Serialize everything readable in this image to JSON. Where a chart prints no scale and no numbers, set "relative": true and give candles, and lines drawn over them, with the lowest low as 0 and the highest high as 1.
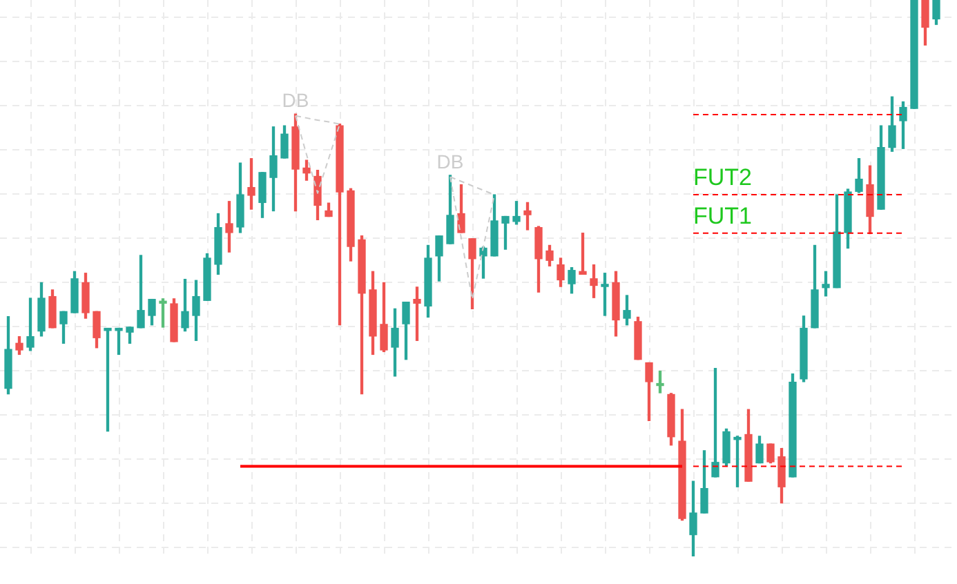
{
  "chart_data": {
    "type": "candlestick",
    "relative": true,
    "grid": true,
    "categories": [
      null,
      null,
      null,
      null,
      null,
      null,
      null,
      null,
      null,
      null,
      null,
      null,
      null,
      null,
      null,
      null,
      null,
      null,
      null,
      null,
      null,
      null,
      null,
      null,
      null,
      null,
      null,
      null,
      null,
      null,
      null,
      null,
      null,
      null,
      null,
      null,
      null,
      null,
      null,
      null,
      null,
      null,
      null,
      null,
      null,
      null,
      null,
      null,
      null,
      null,
      null,
      null,
      null,
      null,
      null,
      null,
      null,
      null,
      null,
      null,
      null,
      null,
      null,
      null,
      null,
      null,
      null,
      null,
      null,
      null,
      null,
      null,
      null,
      null,
      null,
      null,
      null,
      null,
      null,
      null,
      null,
      null,
      null,
      null,
      null
    ],
    "ohlc": [
      [
        0.302,
        0.431,
        0.292,
        0.372
      ],
      [
        0.383,
        0.395,
        0.363,
        0.371
      ],
      [
        0.376,
        0.464,
        0.37,
        0.395
      ],
      [
        0.405,
        0.492,
        0.396,
        0.464
      ],
      [
        0.467,
        0.479,
        0.411,
        0.411
      ],
      [
        0.418,
        0.44,
        0.383,
        0.44
      ],
      [
        0.438,
        0.512,
        0.438,
        0.499
      ],
      [
        0.492,
        0.509,
        0.428,
        0.438
      ],
      [
        0.44,
        0.44,
        0.375,
        0.393
      ],
      [
        0.406,
        0.41,
        0.225,
        0.41
      ],
      [
        0.406,
        0.41,
        0.363,
        0.41
      ],
      [
        0.403,
        0.412,
        0.383,
        0.412
      ],
      [
        0.411,
        0.541,
        0.411,
        0.442
      ],
      [
        0.433,
        0.462,
        0.416,
        0.462
      ],
      [
        0.455,
        0.463,
        0.412,
        0.457
      ],
      [
        0.454,
        0.463,
        0.386,
        0.386
      ],
      [
        0.411,
        0.498,
        0.405,
        0.44
      ],
      [
        0.433,
        0.496,
        0.388,
        0.467
      ],
      [
        0.46,
        0.544,
        0.46,
        0.536
      ],
      [
        0.525,
        0.616,
        0.507,
        0.591
      ],
      [
        0.598,
        0.638,
        0.547,
        0.582
      ],
      [
        0.592,
        0.707,
        0.582,
        0.65
      ],
      [
        0.663,
        0.715,
        0.624,
        0.649
      ],
      [
        0.636,
        0.69,
        0.609,
        0.69
      ],
      [
        0.681,
        0.772,
        0.621,
        0.72
      ],
      [
        0.716,
        0.774,
        0.716,
        0.759
      ],
      [
        0.772,
        0.795,
        0.621,
        0.696
      ],
      [
        0.698,
        0.712,
        0.676,
        0.689
      ],
      [
        0.683,
        0.694,
        0.605,
        0.631
      ],
      [
        0.621,
        0.635,
        0.611,
        0.611
      ],
      [
        0.774,
        0.777,
        0.416,
        0.655
      ],
      [
        0.657,
        0.661,
        0.531,
        0.557
      ],
      [
        0.569,
        0.576,
        0.292,
        0.473
      ],
      [
        0.479,
        0.512,
        0.363,
        0.396
      ],
      [
        0.417,
        0.492,
        0.368,
        0.371
      ],
      [
        0.376,
        0.445,
        0.324,
        0.41
      ],
      [
        0.418,
        0.457,
        0.354,
        0.457
      ],
      [
        0.462,
        0.484,
        0.388,
        0.455
      ],
      [
        0.45,
        0.559,
        0.43,
        0.536
      ],
      [
        0.54,
        0.576,
        0.495,
        0.576
      ],
      [
        0.562,
        0.685,
        0.562,
        0.613
      ],
      [
        0.616,
        0.668,
        0.582,
        0.582
      ],
      [
        0.571,
        0.571,
        0.445,
        0.535
      ],
      [
        0.54,
        0.556,
        0.5,
        0.554
      ],
      [
        0.54,
        0.65,
        0.54,
        0.603
      ],
      [
        0.599,
        0.611,
        0.552,
        0.611
      ],
      [
        0.602,
        0.638,
        0.597,
        0.611
      ],
      [
        0.621,
        0.636,
        0.587,
        0.614
      ],
      [
        0.591,
        0.593,
        0.475,
        0.535
      ],
      [
        0.549,
        0.559,
        0.522,
        0.532
      ],
      [
        0.524,
        0.536,
        0.485,
        0.497
      ],
      [
        0.49,
        0.519,
        0.473,
        0.514
      ],
      [
        0.512,
        0.581,
        0.507,
        0.507
      ],
      [
        0.499,
        0.524,
        0.465,
        0.487
      ],
      [
        0.485,
        0.509,
        0.433,
        0.489
      ],
      [
        0.492,
        0.512,
        0.396,
        0.425
      ],
      [
        0.428,
        0.469,
        0.416,
        0.442
      ],
      [
        0.422,
        0.43,
        0.354,
        0.354
      ],
      [
        0.348,
        0.348,
        0.244,
        0.314
      ],
      [
        0.307,
        0.333,
        0.294,
        0.308
      ],
      [
        0.291,
        0.293,
        0.2,
        0.215
      ],
      [
        0.207,
        0.264,
        0.065,
        0.068
      ],
      [
        0.039,
        0.135,
        0,
        0.078
      ],
      [
        0.078,
        0.19,
        0.078,
        0.122
      ],
      [
        0.143,
        0.338,
        0.143,
        0.169
      ],
      [
        0.168,
        0.229,
        0.163,
        0.224
      ],
      [
        0.21,
        0.216,
        0.125,
        0.214
      ],
      [
        0.219,
        0.264,
        0.135,
        0.135
      ],
      [
        0.168,
        0.216,
        0.168,
        0.202
      ],
      [
        0.202,
        0.202,
        0.168,
        0.17
      ],
      [
        0.179,
        0.194,
        0.096,
        0.125
      ],
      [
        0.143,
        0.328,
        0.143,
        0.313
      ],
      [
        0.319,
        0.432,
        0.314,
        0.41
      ],
      [
        0.411,
        0.559,
        0.411,
        0.479
      ],
      [
        0.483,
        0.512,
        0.468,
        0.489
      ],
      [
        0.483,
        0.65,
        0.483,
        0.583
      ],
      [
        0.582,
        0.66,
        0.554,
        0.655
      ],
      [
        0.656,
        0.715,
        0.654,
        0.678
      ],
      [
        0.668,
        0.702,
        0.58,
        0.611
      ],
      [
        0.624,
        0.774,
        0.624,
        0.735
      ],
      [
        0.735,
        0.826,
        0.728,
        0.774
      ],
      [
        0.783,
        0.817,
        0.733,
        0.807
      ],
      [
        0.805,
        1,
        0.805,
        1
      ],
      [
        1,
        1,
        0.919,
        0.951
      ],
      [
        0.966,
        1,
        0.956,
        1
      ]
    ],
    "colors": [
      "#26a69a",
      "#ef5350",
      "#26a69a",
      "#26a69a",
      "#ef5350",
      "#26a69a",
      "#26a69a",
      "#ef5350",
      "#ef5350",
      "#26a69a",
      "#26a69a",
      "#26a69a",
      "#26a69a",
      "#26a69a",
      "#5abe78",
      "#ef5350",
      "#26a69a",
      "#26a69a",
      "#26a69a",
      "#26a69a",
      "#ef5350",
      "#26a69a",
      "#ef5350",
      "#26a69a",
      "#26a69a",
      "#26a69a",
      "#ef5350",
      "#ef5350",
      "#ef5350",
      "#ef5350",
      "#ef5350",
      "#ef5350",
      "#ef5350",
      "#ef5350",
      "#ef5350",
      "#26a69a",
      "#26a69a",
      "#ef5350",
      "#26a69a",
      "#26a69a",
      "#26a69a",
      "#ef5350",
      "#ef5350",
      "#26a69a",
      "#26a69a",
      "#26a69a",
      "#26a69a",
      "#ef5350",
      "#ef5350",
      "#ef5350",
      "#ef5350",
      "#26a69a",
      "#ef5350",
      "#ef5350",
      "#26a69a",
      "#ef5350",
      "#26a69a",
      "#ef5350",
      "#ef5350",
      "#5abe78",
      "#ef5350",
      "#ef5350",
      "#26a69a",
      "#26a69a",
      "#26a69a",
      "#26a69a",
      "#26a69a",
      "#ef5350",
      "#26a69a",
      "#ef5350",
      "#ef5350",
      "#26a69a",
      "#26a69a",
      "#26a69a",
      "#26a69a",
      "#26a69a",
      "#26a69a",
      "#26a69a",
      "#ef5350",
      "#26a69a",
      "#26a69a",
      "#26a69a",
      "#26a69a",
      "#ef5350",
      "#26a69a"
    ],
    "series": [
      {
        "type": "line",
        "color": "#ff0000",
        "line_style": "dashed",
        "values": [
          null,
          null,
          null,
          null,
          null,
          null,
          null,
          null,
          null,
          null,
          null,
          null,
          null,
          null,
          null,
          null,
          null,
          null,
          null,
          null,
          null,
          null,
          null,
          null,
          null,
          null,
          null,
          null,
          null,
          null,
          null,
          null,
          null,
          null,
          null,
          null,
          null,
          null,
          null,
          null,
          null,
          null,
          null,
          null,
          null,
          null,
          null,
          null,
          null,
          null,
          null,
          null,
          null,
          null,
          null,
          null,
          null,
          null,
          null,
          null,
          null,
          null,
          0.794,
          0.794,
          0.794,
          0.794,
          0.794,
          0.794,
          0.794,
          0.794,
          0.794,
          0.794,
          0.794,
          0.794,
          0.794,
          0.794,
          0.794,
          0.794,
          0.794,
          0.794,
          0.794,
          0.794,
          null,
          null,
          null
        ]
      },
      {
        "type": "line",
        "name": "FUT2",
        "color": "#ff0000",
        "line_style": "dashed",
        "values": [
          null,
          null,
          null,
          null,
          null,
          null,
          null,
          null,
          null,
          null,
          null,
          null,
          null,
          null,
          null,
          null,
          null,
          null,
          null,
          null,
          null,
          null,
          null,
          null,
          null,
          null,
          null,
          null,
          null,
          null,
          null,
          null,
          null,
          null,
          null,
          null,
          null,
          null,
          null,
          null,
          null,
          null,
          null,
          null,
          null,
          null,
          null,
          null,
          null,
          null,
          null,
          null,
          null,
          null,
          null,
          null,
          null,
          null,
          null,
          null,
          null,
          null,
          0.65,
          0.65,
          0.65,
          0.65,
          0.65,
          0.65,
          0.65,
          0.65,
          0.65,
          0.65,
          0.65,
          0.65,
          0.65,
          0.65,
          0.65,
          0.65,
          0.65,
          0.65,
          0.65,
          0.65,
          null,
          null,
          null
        ]
      },
      {
        "type": "line",
        "name": "FUT1",
        "color": "#ff0000",
        "line_style": "dashed",
        "values": [
          null,
          null,
          null,
          null,
          null,
          null,
          null,
          null,
          null,
          null,
          null,
          null,
          null,
          null,
          null,
          null,
          null,
          null,
          null,
          null,
          null,
          null,
          null,
          null,
          null,
          null,
          null,
          null,
          null,
          null,
          null,
          null,
          null,
          null,
          null,
          null,
          null,
          null,
          null,
          null,
          null,
          null,
          null,
          null,
          null,
          null,
          null,
          null,
          null,
          null,
          null,
          null,
          null,
          null,
          null,
          null,
          null,
          null,
          null,
          null,
          null,
          null,
          0.581,
          0.581,
          0.581,
          0.581,
          0.581,
          0.581,
          0.581,
          0.581,
          0.581,
          0.581,
          0.581,
          0.581,
          0.581,
          0.581,
          0.581,
          0.581,
          0.581,
          0.581,
          0.581,
          0.581,
          null,
          null,
          null
        ]
      },
      {
        "type": "line",
        "color": "#ff0000",
        "line_style": "solid",
        "values": [
          null,
          null,
          null,
          null,
          null,
          null,
          null,
          null,
          null,
          null,
          null,
          null,
          null,
          null,
          null,
          null,
          null,
          null,
          null,
          null,
          null,
          0.162,
          0.162,
          0.162,
          0.162,
          0.162,
          0.162,
          0.162,
          0.162,
          0.162,
          0.162,
          0.162,
          0.162,
          0.162,
          0.162,
          0.162,
          0.162,
          0.162,
          0.162,
          0.162,
          0.162,
          0.162,
          0.162,
          0.162,
          0.162,
          0.162,
          0.162,
          0.162,
          0.162,
          0.162,
          0.162,
          0.162,
          0.162,
          0.162,
          0.162,
          0.162,
          0.162,
          0.162,
          0.162,
          0.162,
          0.162,
          0.162,
          null,
          null,
          null,
          null,
          null,
          null,
          null,
          null,
          null,
          null,
          null,
          null,
          null,
          null,
          null,
          null,
          null,
          null,
          null,
          null,
          null,
          null,
          null
        ]
      },
      {
        "type": "line",
        "color": "#ff0000",
        "line_style": "dashed",
        "values": [
          null,
          null,
          null,
          null,
          null,
          null,
          null,
          null,
          null,
          null,
          null,
          null,
          null,
          null,
          null,
          null,
          null,
          null,
          null,
          null,
          null,
          null,
          null,
          null,
          null,
          null,
          null,
          null,
          null,
          null,
          null,
          null,
          null,
          null,
          null,
          null,
          null,
          null,
          null,
          null,
          null,
          null,
          null,
          null,
          null,
          null,
          null,
          null,
          null,
          null,
          null,
          null,
          null,
          null,
          null,
          null,
          null,
          null,
          null,
          null,
          null,
          null,
          0.162,
          0.162,
          0.162,
          0.162,
          0.162,
          0.162,
          0.162,
          0.162,
          0.162,
          0.162,
          0.162,
          0.162,
          0.162,
          0.162,
          0.162,
          0.162,
          0.162,
          0.162,
          0.162,
          0.162,
          null,
          null,
          null
        ]
      },
      {
        "type": "line",
        "color": "#cccccc",
        "line_style": "dashed",
        "values": [
          null,
          null,
          null,
          null,
          null,
          null,
          null,
          null,
          null,
          null,
          null,
          null,
          null,
          null,
          null,
          null,
          null,
          null,
          null,
          null,
          null,
          null,
          null,
          null,
          null,
          null,
          0.792,
          0.722,
          0.653,
          0.715,
          0.777,
          null,
          null,
          null,
          null,
          null,
          null,
          null,
          null,
          null,
          null,
          null,
          null,
          null,
          null,
          null,
          null,
          null,
          null,
          null,
          null,
          null,
          null,
          null,
          null,
          null,
          null,
          null,
          null,
          null,
          null,
          null,
          null,
          null,
          null,
          null,
          null,
          null,
          null,
          null,
          null,
          null,
          null,
          null,
          null,
          null,
          null,
          null,
          null,
          null,
          null,
          null,
          null,
          null,
          null
        ]
      },
      {
        "type": "line",
        "color": "#cccccc",
        "line_style": "dashed",
        "values": [
          null,
          null,
          null,
          null,
          null,
          null,
          null,
          null,
          null,
          null,
          null,
          null,
          null,
          null,
          null,
          null,
          null,
          null,
          null,
          null,
          null,
          null,
          null,
          null,
          null,
          null,
          0.792,
          0.788,
          0.784,
          0.781,
          0.777,
          null,
          null,
          null,
          null,
          null,
          null,
          null,
          null,
          null,
          null,
          null,
          null,
          null,
          null,
          null,
          null,
          null,
          null,
          null,
          null,
          null,
          null,
          null,
          null,
          null,
          null,
          null,
          null,
          null,
          null,
          null,
          null,
          null,
          null,
          null,
          null,
          null,
          null,
          null,
          null,
          null,
          null,
          null,
          null,
          null,
          null,
          null,
          null,
          null,
          null,
          null,
          null,
          null,
          null
        ]
      },
      {
        "type": "line",
        "color": "#cccccc",
        "line_style": "dashed",
        "values": [
          null,
          null,
          null,
          null,
          null,
          null,
          null,
          null,
          null,
          null,
          null,
          null,
          null,
          null,
          null,
          null,
          null,
          null,
          null,
          null,
          null,
          null,
          null,
          null,
          null,
          null,
          null,
          null,
          null,
          null,
          null,
          null,
          null,
          null,
          null,
          null,
          null,
          null,
          null,
          null,
          0.682,
          0.572,
          0.462,
          0.556,
          0.65,
          null,
          null,
          null,
          null,
          null,
          null,
          null,
          null,
          null,
          null,
          null,
          null,
          null,
          null,
          null,
          null,
          null,
          null,
          null,
          null,
          null,
          null,
          null,
          null,
          null,
          null,
          null,
          null,
          null,
          null,
          null,
          null,
          null,
          null,
          null,
          null,
          null,
          null,
          null,
          null
        ]
      },
      {
        "type": "line",
        "color": "#cccccc",
        "line_style": "dashed",
        "values": [
          null,
          null,
          null,
          null,
          null,
          null,
          null,
          null,
          null,
          null,
          null,
          null,
          null,
          null,
          null,
          null,
          null,
          null,
          null,
          null,
          null,
          null,
          null,
          null,
          null,
          null,
          null,
          null,
          null,
          null,
          null,
          null,
          null,
          null,
          null,
          null,
          null,
          null,
          null,
          null,
          0.682,
          0.674,
          0.666,
          0.658,
          0.65,
          null,
          null,
          null,
          null,
          null,
          null,
          null,
          null,
          null,
          null,
          null,
          null,
          null,
          null,
          null,
          null,
          null,
          null,
          null,
          null,
          null,
          null,
          null,
          null,
          null,
          null,
          null,
          null,
          null,
          null,
          null,
          null,
          null,
          null,
          null,
          null,
          null,
          null,
          null,
          null
        ]
      }
    ],
    "annotations": [
      {
        "text": "DB",
        "y": 0.795
      },
      {
        "text": "DB",
        "y": 0.685
      }
    ]
  }
}
